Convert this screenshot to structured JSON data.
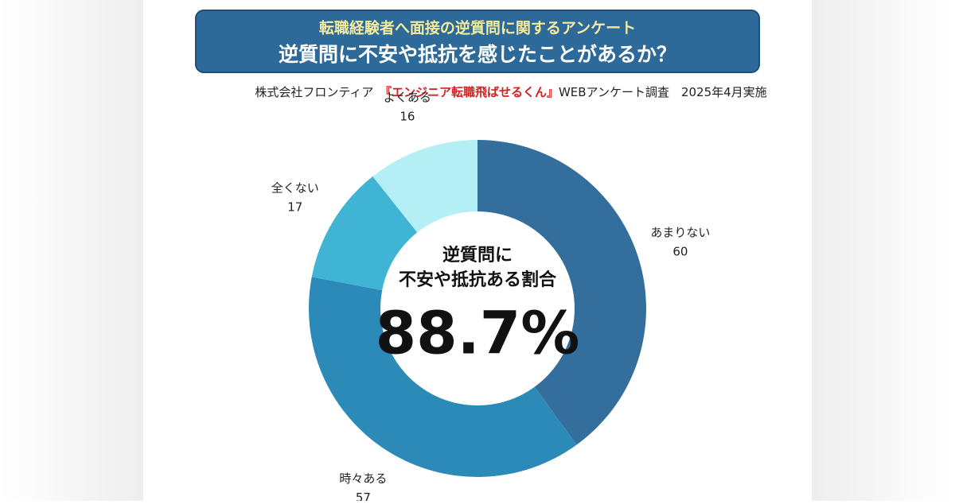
{
  "chart_data": {
    "type": "donut",
    "title": "転職経験者へ面接の逆質問に関するアンケート",
    "subtitle": "逆質問に不安や抵抗を感じたことがあるか？",
    "source": [
      "株式会社フロンティア　",
      "『エンジニア転職飛ばせるくん』",
      "WEBアンケート調査　2025年4月実施"
    ],
    "categories": [
      "あまりない",
      "時々ある",
      "全くない",
      "よくある"
    ],
    "values": [
      60,
      57,
      17,
      16
    ],
    "colors": [
      "#346e9c",
      "#2b8ab8",
      "#3fb4d4",
      "#b4eff6"
    ],
    "center_label": [
      "逆質問に",
      "不安や抵抗ある割合"
    ],
    "center_value": "88.7%"
  }
}
